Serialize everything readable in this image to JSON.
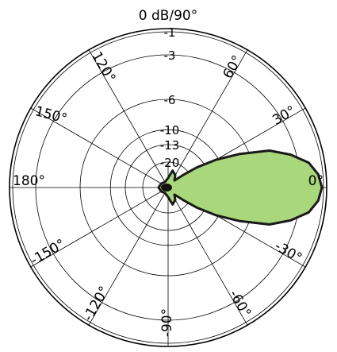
{
  "chart_data": {
    "type": "polar",
    "title": "0 dB/90°",
    "pattern_color": "#a9d77c",
    "outline_color": "#1a1a1a",
    "grid_color": "#000000",
    "radial_ticks": [
      {
        "label": "-1",
        "r": 0.98
      },
      {
        "label": "-3",
        "r": 0.835
      },
      {
        "label": "-6",
        "r": 0.555
      },
      {
        "label": "-10",
        "r": 0.364
      },
      {
        "label": "-13",
        "r": 0.27
      },
      {
        "label": "-20",
        "r": 0.16
      }
    ],
    "angle_labels": [
      {
        "label": "0°",
        "deg": 0
      },
      {
        "label": "30°",
        "deg": 30
      },
      {
        "label": "60°",
        "deg": 60
      },
      {
        "label": "120°",
        "deg": 120
      },
      {
        "label": "150°",
        "deg": 150
      },
      {
        "label": "180°",
        "deg": 180
      },
      {
        "label": "-150°",
        "deg": -150
      },
      {
        "label": "-120°",
        "deg": -120
      },
      {
        "label": "-90°",
        "deg": -90
      },
      {
        "label": "-60°",
        "deg": -60
      },
      {
        "label": "-30°",
        "deg": -30
      }
    ],
    "pattern": [
      {
        "deg": 0,
        "r": 0.97
      },
      {
        "deg": 5,
        "r": 0.95
      },
      {
        "deg": 10,
        "r": 0.9
      },
      {
        "deg": 15,
        "r": 0.8
      },
      {
        "deg": 20,
        "r": 0.68
      },
      {
        "deg": 25,
        "r": 0.5
      },
      {
        "deg": 30,
        "r": 0.35
      },
      {
        "deg": 35,
        "r": 0.22
      },
      {
        "deg": 40,
        "r": 0.12
      },
      {
        "deg": 48,
        "r": 0.06
      },
      {
        "deg": 60,
        "r": 0.09
      },
      {
        "deg": 75,
        "r": 0.11
      },
      {
        "deg": 90,
        "r": 0.06
      },
      {
        "deg": 120,
        "r": 0.04
      },
      {
        "deg": 150,
        "r": 0.05
      },
      {
        "deg": 180,
        "r": 0.06
      },
      {
        "deg": -150,
        "r": 0.05
      },
      {
        "deg": -120,
        "r": 0.04
      },
      {
        "deg": -90,
        "r": 0.06
      },
      {
        "deg": -75,
        "r": 0.11
      },
      {
        "deg": -60,
        "r": 0.09
      },
      {
        "deg": -48,
        "r": 0.06
      },
      {
        "deg": -40,
        "r": 0.12
      },
      {
        "deg": -35,
        "r": 0.22
      },
      {
        "deg": -30,
        "r": 0.35
      },
      {
        "deg": -25,
        "r": 0.5
      },
      {
        "deg": -20,
        "r": 0.68
      },
      {
        "deg": -15,
        "r": 0.8
      },
      {
        "deg": -10,
        "r": 0.9
      },
      {
        "deg": -5,
        "r": 0.95
      }
    ]
  }
}
